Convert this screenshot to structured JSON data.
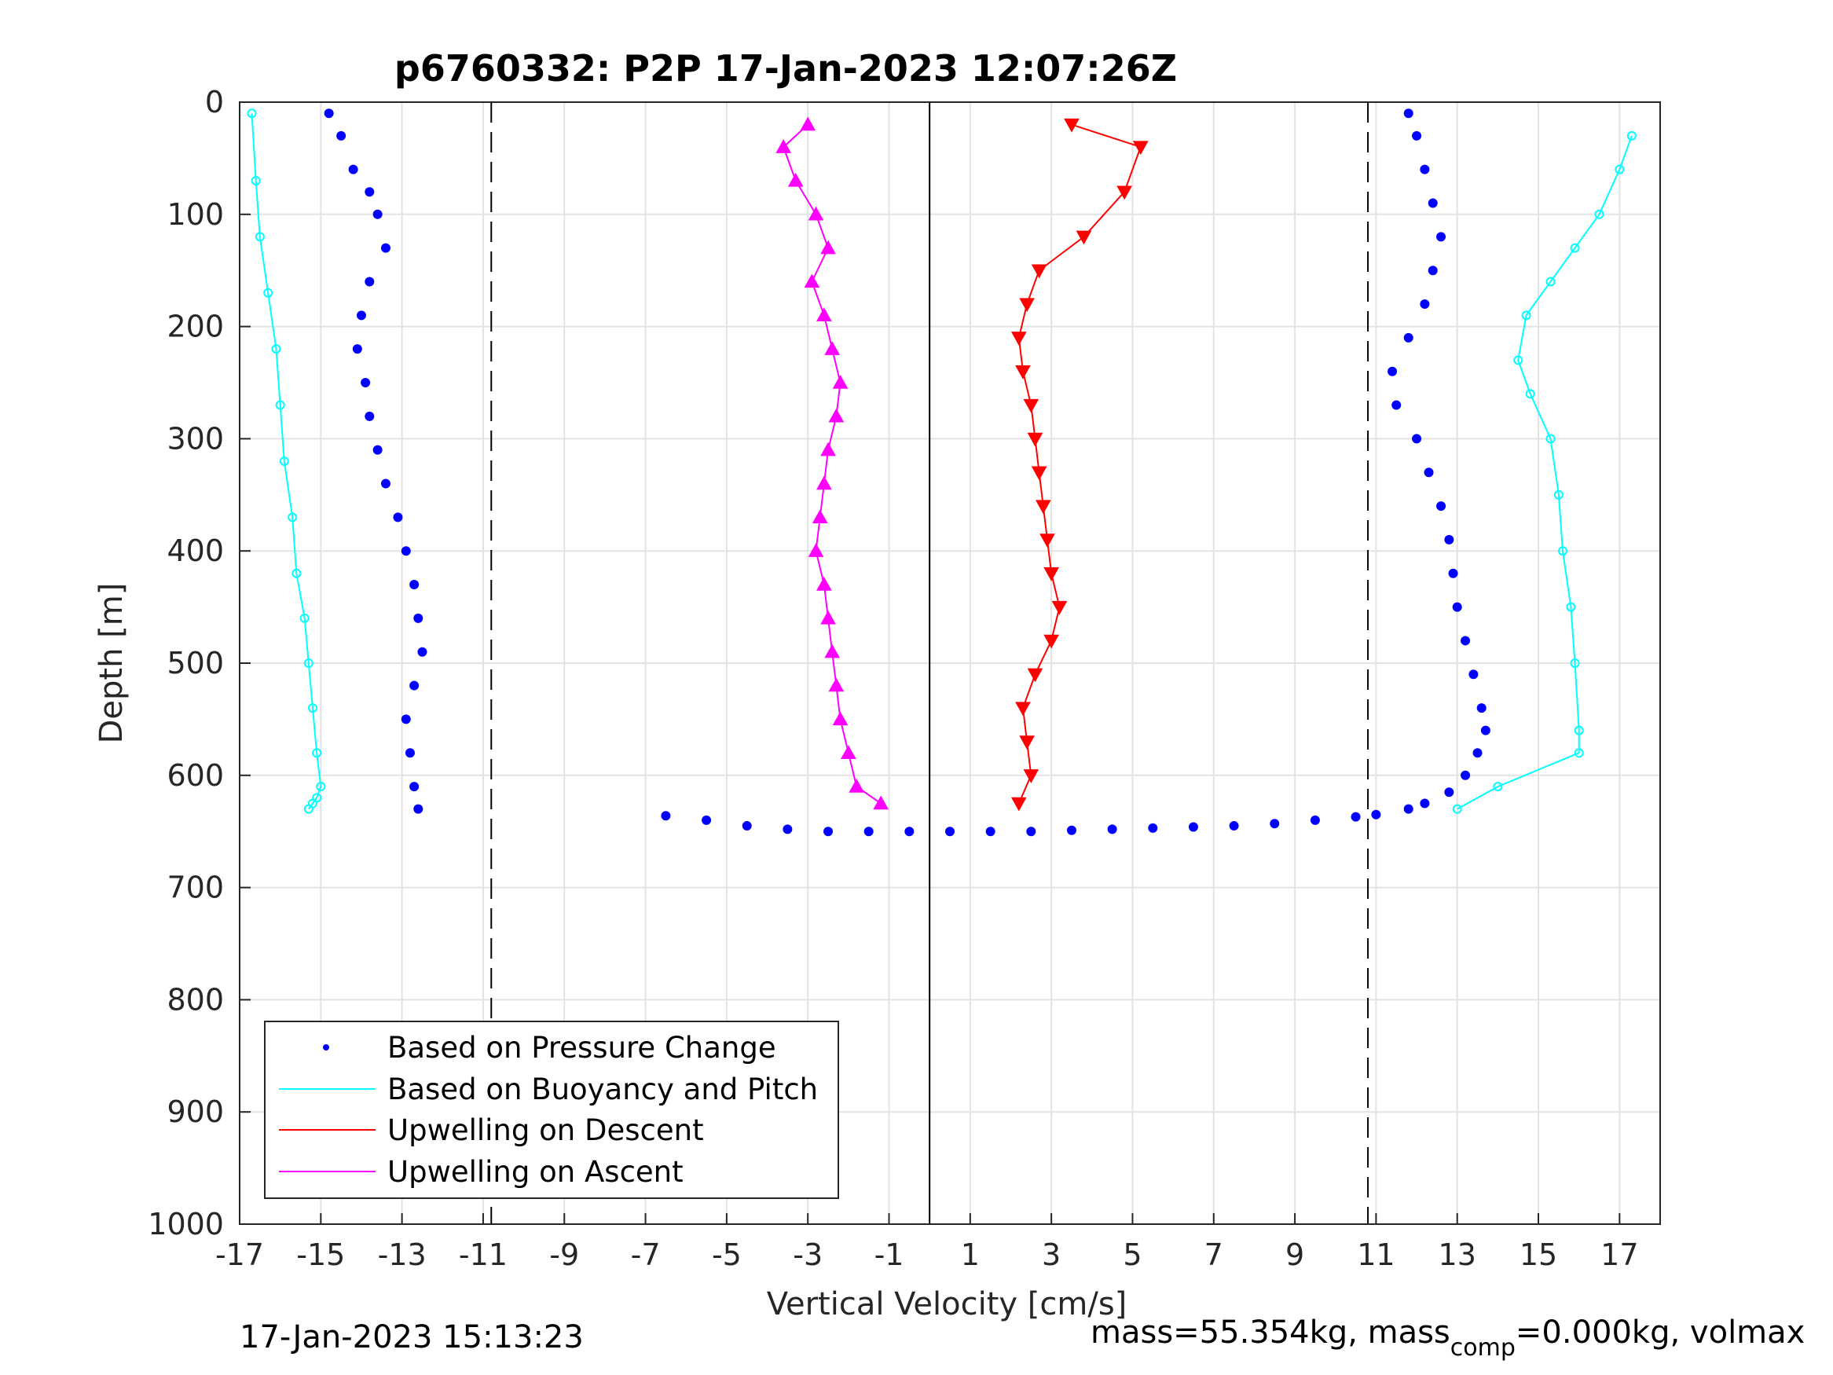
{
  "chart_data": {
    "type": "scatter",
    "title": "p6760332: P2P 17-Jan-2023 12:07:26Z",
    "xlabel": "Vertical Velocity [cm/s]",
    "ylabel": "Depth [m]",
    "xlim": [
      -17,
      18
    ],
    "ylim": [
      1000,
      0
    ],
    "y_reversed": true,
    "grid": true,
    "legend_placement": "bottom-left",
    "x_ticks": [
      "-17",
      "-15",
      "-13",
      "-11",
      "-9",
      "-7",
      "-5",
      "-3",
      "-1",
      "1",
      "3",
      "5",
      "7",
      "9",
      "11",
      "13",
      "15",
      "17"
    ],
    "y_ticks": [
      "0",
      "100",
      "200",
      "300",
      "400",
      "500",
      "600",
      "700",
      "800",
      "900",
      "1000"
    ],
    "reference_lines": [
      {
        "style": "dashed",
        "x": -10.8
      },
      {
        "style": "solid",
        "x": 0
      },
      {
        "style": "dashed",
        "x": 10.8
      }
    ],
    "series": [
      {
        "name": "Based on Pressure Change",
        "color": "#0000ff",
        "marker": "dot",
        "profiles": [
          {
            "x": [
              -14.8,
              -14.5,
              -14.2,
              -13.8,
              -13.6,
              -13.4,
              -13.8,
              -14.0,
              -14.1,
              -13.9,
              -13.8,
              -13.6,
              -13.4,
              -13.1,
              -12.9,
              -12.7,
              -12.6,
              -12.5,
              -12.7,
              -12.9,
              -12.8,
              -12.7,
              -12.6
            ],
            "y": [
              10,
              30,
              60,
              80,
              100,
              130,
              160,
              190,
              220,
              250,
              280,
              310,
              340,
              370,
              400,
              430,
              460,
              490,
              520,
              550,
              580,
              610,
              630
            ]
          },
          {
            "x": [
              11.8,
              12.0,
              12.2,
              12.4,
              12.6,
              12.4,
              12.2,
              11.8,
              11.4,
              11.5,
              12.0,
              12.3,
              12.6,
              12.8,
              12.9,
              13.0,
              13.2,
              13.4,
              13.6,
              13.7,
              13.5,
              13.2,
              12.8,
              12.2,
              11.8
            ],
            "y": [
              10,
              30,
              60,
              90,
              120,
              150,
              180,
              210,
              240,
              270,
              300,
              330,
              360,
              390,
              420,
              450,
              480,
              510,
              540,
              560,
              580,
              600,
              615,
              625,
              630
            ]
          },
          {
            "x": [
              -6.5,
              -5.5,
              -4.5,
              -3.5,
              -2.5,
              -1.5,
              -0.5,
              0.5,
              1.5,
              2.5,
              3.5,
              4.5,
              5.5,
              6.5,
              7.5,
              8.5,
              9.5,
              10.5,
              11.0
            ],
            "y": [
              636,
              640,
              645,
              648,
              650,
              650,
              650,
              650,
              650,
              650,
              649,
              648,
              647,
              646,
              645,
              643,
              640,
              637,
              635
            ]
          }
        ]
      },
      {
        "name": "Based on Buoyancy and Pitch",
        "color": "#00ffff",
        "marker": "circle",
        "profiles": [
          {
            "x": [
              -16.7,
              -16.6,
              -16.5,
              -16.3,
              -16.1,
              -16.0,
              -15.9,
              -15.7,
              -15.6,
              -15.4,
              -15.3,
              -15.2,
              -15.1,
              -15.0,
              -15.1,
              -15.2,
              -15.3
            ],
            "y": [
              10,
              70,
              120,
              170,
              220,
              270,
              320,
              370,
              420,
              460,
              500,
              540,
              580,
              610,
              620,
              625,
              630
            ]
          },
          {
            "x": [
              17.3,
              17.0,
              16.5,
              15.9,
              15.3,
              14.7,
              14.5,
              14.8,
              15.3,
              15.5,
              15.6,
              15.8,
              15.9,
              16.0,
              16.0,
              14.0,
              13.0
            ],
            "y": [
              30,
              60,
              100,
              130,
              160,
              190,
              230,
              260,
              300,
              350,
              400,
              450,
              500,
              560,
              580,
              610,
              630
            ]
          }
        ]
      },
      {
        "name": "Upwelling on Descent",
        "color": "#ff0000",
        "marker": "triangle-down",
        "x": [
          3.5,
          5.2,
          4.8,
          3.8,
          2.7,
          2.4,
          2.2,
          2.3,
          2.5,
          2.6,
          2.7,
          2.8,
          2.9,
          3.0,
          3.2,
          3.0,
          2.6,
          2.3,
          2.4,
          2.5,
          2.2
        ],
        "y": [
          20,
          40,
          80,
          120,
          150,
          180,
          210,
          240,
          270,
          300,
          330,
          360,
          390,
          420,
          450,
          480,
          510,
          540,
          570,
          600,
          625
        ]
      },
      {
        "name": "Upwelling on Ascent",
        "color": "#ff00ff",
        "marker": "triangle-up",
        "x": [
          -3.0,
          -3.6,
          -3.3,
          -2.8,
          -2.5,
          -2.9,
          -2.6,
          -2.4,
          -2.2,
          -2.3,
          -2.5,
          -2.6,
          -2.7,
          -2.8,
          -2.6,
          -2.5,
          -2.4,
          -2.3,
          -2.2,
          -2.0,
          -1.8,
          -1.2
        ],
        "y": [
          20,
          40,
          70,
          100,
          130,
          160,
          190,
          220,
          250,
          280,
          310,
          340,
          370,
          400,
          430,
          460,
          490,
          520,
          550,
          580,
          610,
          625
        ]
      }
    ],
    "legend": [
      "Based on Pressure Change",
      "Based on Buoyancy and Pitch",
      "Upwelling on Descent",
      "Upwelling on Ascent"
    ]
  },
  "footer": {
    "timestamp": "17-Jan-2023 15:13:23",
    "mass_prefix": "mass=55.354kg, mass",
    "mass_sub": "comp",
    "mass_suffix": "=0.000kg, volmax"
  }
}
